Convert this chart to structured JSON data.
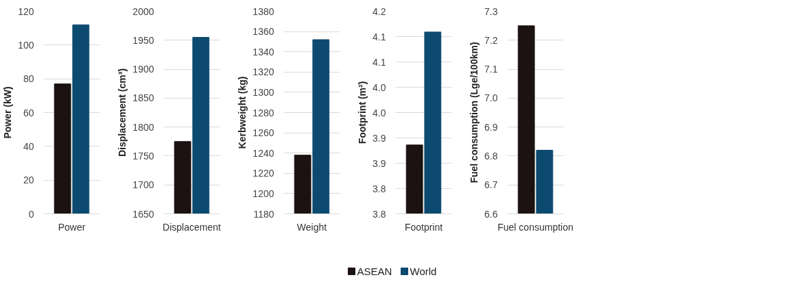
{
  "chart_data": [
    {
      "type": "bar",
      "categories": [
        "Power"
      ],
      "ylabel": "Power (kW)",
      "ylim": [
        0,
        120
      ],
      "yticks": [
        0,
        20,
        40,
        60,
        80,
        100,
        120
      ],
      "grid": "y",
      "series": [
        {
          "color": "#1c1212",
          "values": [
            77
          ]
        },
        {
          "color": "#0d4a70",
          "values": [
            112
          ]
        }
      ]
    },
    {
      "type": "bar",
      "categories": [
        "Displacement"
      ],
      "ylabel": "Displacement (cm³)",
      "ylim": [
        1650,
        2000
      ],
      "yticks": [
        1650,
        1700,
        1750,
        1800,
        1850,
        1900,
        1950,
        2000
      ],
      "grid": "y",
      "series": [
        {
          "color": "#1c1212",
          "values": [
            1775
          ]
        },
        {
          "color": "#0d4a70",
          "values": [
            1955
          ]
        }
      ]
    },
    {
      "type": "bar",
      "categories": [
        "Weight"
      ],
      "ylabel": "Kerbweight (kg)",
      "ylim": [
        1180,
        1380
      ],
      "yticks": [
        1180,
        1200,
        1220,
        1240,
        1260,
        1280,
        1300,
        1320,
        1340,
        1360,
        1380
      ],
      "grid": "y",
      "legend": "bottom",
      "series": [
        {
          "name": "ASEAN",
          "color": "#1c1212",
          "values": [
            1238
          ]
        },
        {
          "name": "World",
          "color": "#0d4a70",
          "values": [
            1352
          ]
        }
      ]
    },
    {
      "type": "bar",
      "categories": [
        "Footprint"
      ],
      "ylabel": "Footprint (m²)",
      "ylim": [
        3.75,
        4.15
      ],
      "yticks": [
        {
          "value": 3.75,
          "label": "3.8"
        },
        {
          "value": 3.8,
          "label": "3.8"
        },
        {
          "value": 3.85,
          "label": "3.9"
        },
        {
          "value": 3.9,
          "label": "3.9"
        },
        {
          "value": 3.95,
          "label": "4.0"
        },
        {
          "value": 4.0,
          "label": "4.0"
        },
        {
          "value": 4.05,
          "label": "4.1"
        },
        {
          "value": 4.1,
          "label": "4.1"
        },
        {
          "value": 4.15,
          "label": "4.2"
        }
      ],
      "grid": "y",
      "series": [
        {
          "color": "#1c1212",
          "values": [
            3.886
          ]
        },
        {
          "color": "#0d4a70",
          "values": [
            4.109
          ]
        }
      ]
    },
    {
      "type": "bar",
      "categories": [
        "Fuel consumption"
      ],
      "ylabel": "Fuel consumption (Lge/100km)",
      "ylim": [
        6.6,
        7.3
      ],
      "yticks": [
        6.6,
        6.7,
        6.8,
        6.9,
        {
          "value": 7.0,
          "label": "7.0"
        },
        7.1,
        7.2,
        7.3
      ],
      "grid": "y",
      "series": [
        {
          "color": "#1c1212",
          "values": [
            7.25
          ]
        },
        {
          "color": "#0d4a70",
          "values": [
            6.82
          ]
        }
      ]
    }
  ]
}
